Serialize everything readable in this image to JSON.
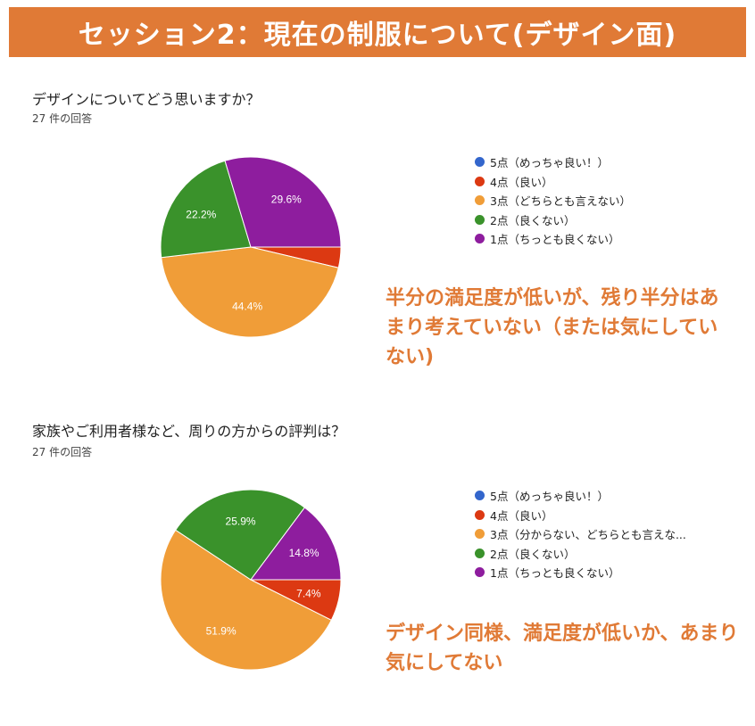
{
  "banner": {
    "title": "セッション2：現在の制服について(デザイン面)"
  },
  "charts": [
    {
      "question": "デザインについてどう思いますか？",
      "response_count": "27 件の回答",
      "note": "半分の満足度が低いが、残り半分はあまり考えていない（または気にしていない)"
    },
    {
      "question": "家族やご利用者様など、周りの方からの評判は？",
      "response_count": "27 件の回答",
      "note": "デザイン同様、満足度が低いか、あまり気にしてない"
    }
  ],
  "chart_data": [
    {
      "type": "pie",
      "title": "デザインについてどう思いますか？",
      "categories": [
        "5点（めっちゃ良い！）",
        "4点（良い）",
        "3点（どちらとも言えない）",
        "2点（良くない）",
        "1点（ちっとも良くない）"
      ],
      "values": [
        0,
        3.7,
        44.4,
        22.2,
        29.6
      ],
      "value_labels": [
        "",
        "",
        "44.4%",
        "22.2%",
        "29.6%"
      ],
      "colors": [
        "#3366cc",
        "#dc3912",
        "#f09d38",
        "#3a922b",
        "#8e1d9e"
      ],
      "legend_position": "right",
      "start": "east",
      "direction": "clockwise"
    },
    {
      "type": "pie",
      "title": "家族やご利用者様など、周りの方からの評判は？",
      "categories": [
        "5点（めっちゃ良い！）",
        "4点（良い）",
        "3点（分からない、どちらとも言えな...",
        "2点（良くない）",
        "1点（ちっとも良くない）"
      ],
      "values": [
        0,
        7.4,
        51.9,
        25.9,
        14.8
      ],
      "value_labels": [
        "",
        "7.4%",
        "51.9%",
        "25.9%",
        "14.8%"
      ],
      "colors": [
        "#3366cc",
        "#dc3912",
        "#f09d38",
        "#3a922b",
        "#8e1d9e"
      ],
      "legend_position": "right",
      "start": "east",
      "direction": "clockwise"
    }
  ]
}
